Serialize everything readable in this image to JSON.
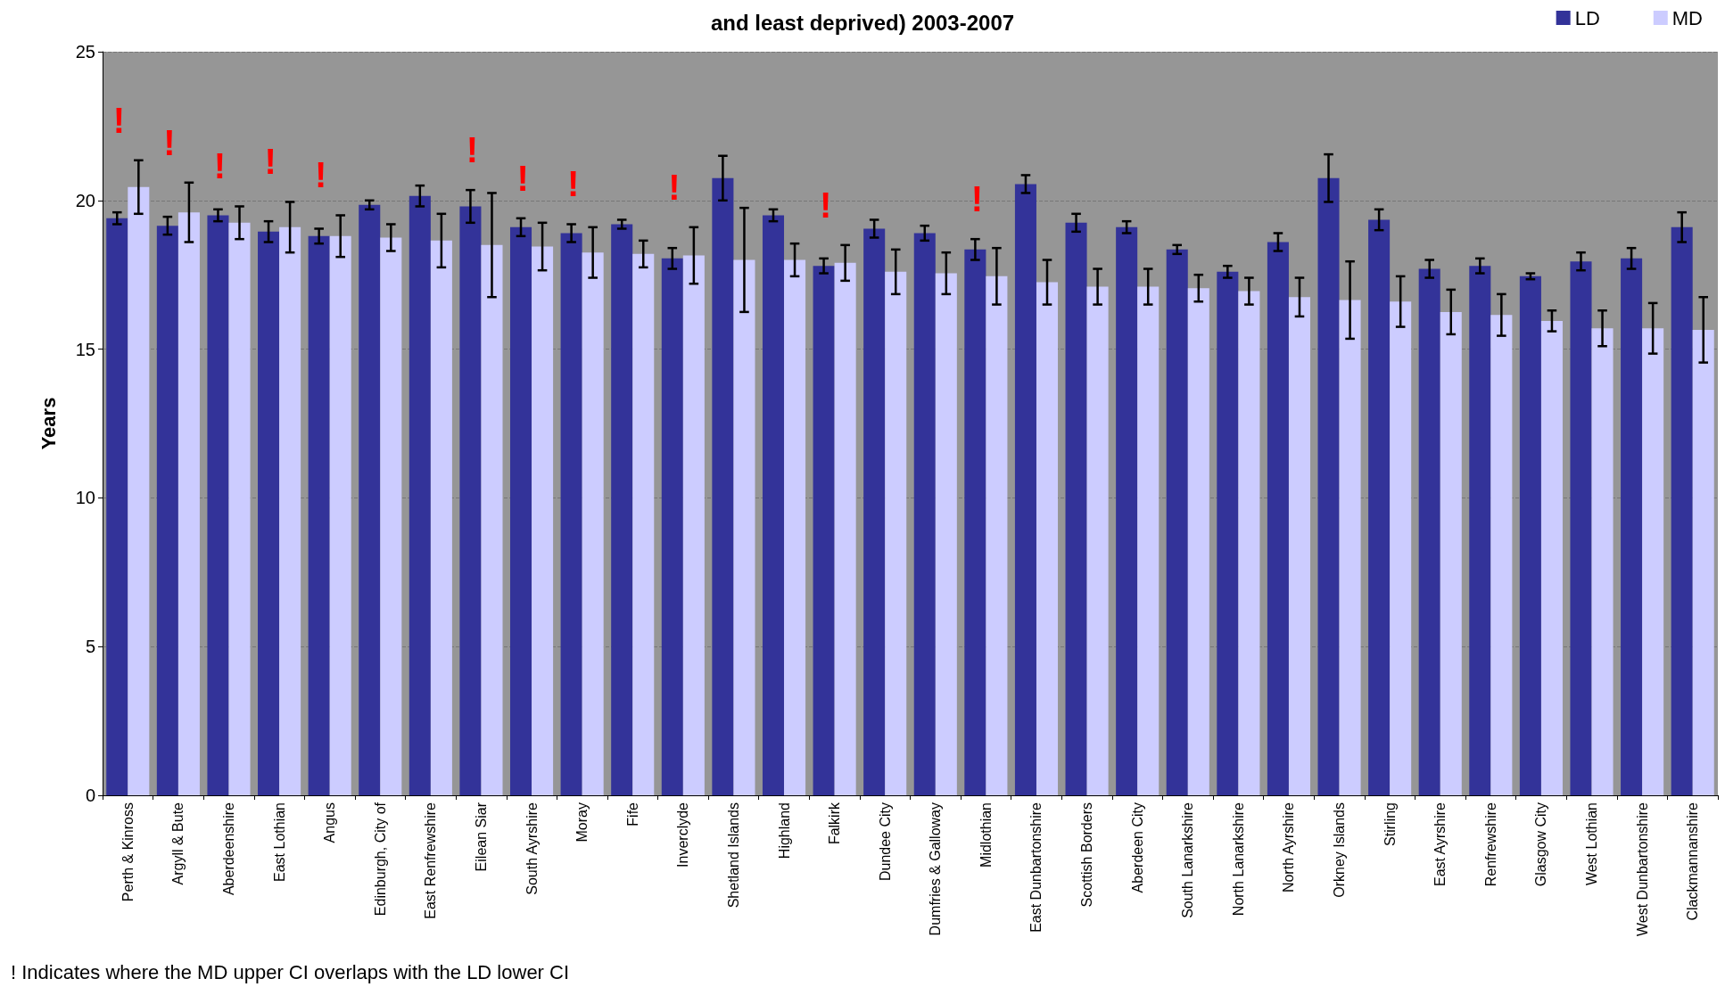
{
  "chart_data": {
    "type": "bar",
    "title": "and least deprived) 2003-2007",
    "ylabel": "Years",
    "categories": [
      "Perth & Kinross",
      "Argyll & Bute",
      "Aberdeenshire",
      "East Lothian",
      "Angus",
      "Edinburgh, City of",
      "East Renfrewshire",
      "Eilean Siar",
      "South Ayrshire",
      "Moray",
      "Fife",
      "Inverclyde",
      "Shetland Islands",
      "Highland",
      "Falkirk",
      "Dundee City",
      "Dumfries & Galloway",
      "Midlothian",
      "East Dunbartonshire",
      "Scottish Borders",
      "Aberdeen City",
      "South Lanarkshire",
      "North Lanarkshire",
      "North Ayrshire",
      "Orkney Islands",
      "Stirling",
      "East Ayrshire",
      "Renfrewshire",
      "Glasgow City",
      "West Lothian",
      "West Dunbartonshire",
      "Clackmannanshire"
    ],
    "series": [
      {
        "name": "LD",
        "color": "#333399",
        "values": [
          19.4,
          19.15,
          19.5,
          18.95,
          18.8,
          19.85,
          20.15,
          19.8,
          19.1,
          18.9,
          19.2,
          18.05,
          20.75,
          19.5,
          17.8,
          19.05,
          18.9,
          18.35,
          20.55,
          19.25,
          19.1,
          18.35,
          17.6,
          18.6,
          20.75,
          19.35,
          17.7,
          17.8,
          17.45,
          17.95,
          18.05,
          19.1
        ],
        "errors": [
          0.2,
          0.3,
          0.2,
          0.35,
          0.25,
          0.15,
          0.35,
          0.55,
          0.3,
          0.3,
          0.15,
          0.35,
          0.75,
          0.2,
          0.25,
          0.3,
          0.25,
          0.35,
          0.3,
          0.3,
          0.2,
          0.15,
          0.2,
          0.3,
          0.8,
          0.35,
          0.3,
          0.25,
          0.1,
          0.3,
          0.35,
          0.5
        ]
      },
      {
        "name": "MD",
        "color": "#ccccff",
        "values": [
          20.45,
          19.6,
          19.25,
          19.1,
          18.8,
          18.75,
          18.65,
          18.5,
          18.45,
          18.25,
          18.2,
          18.15,
          18.0,
          18.0,
          17.9,
          17.6,
          17.55,
          17.45,
          17.25,
          17.1,
          17.1,
          17.05,
          16.95,
          16.75,
          16.65,
          16.6,
          16.25,
          16.15,
          15.95,
          15.7,
          15.7,
          15.65
        ],
        "errors": [
          0.9,
          1.0,
          0.55,
          0.85,
          0.7,
          0.45,
          0.9,
          1.75,
          0.8,
          0.85,
          0.45,
          0.95,
          1.75,
          0.55,
          0.6,
          0.75,
          0.7,
          0.95,
          0.75,
          0.6,
          0.6,
          0.45,
          0.45,
          0.65,
          1.3,
          0.85,
          0.75,
          0.7,
          0.35,
          0.6,
          0.85,
          1.1
        ]
      }
    ],
    "ylim": [
      0,
      25
    ],
    "yticks": [
      0,
      5,
      10,
      15,
      20,
      25
    ],
    "grid": "y",
    "legend": "top right",
    "annotations": [
      {
        "text": "!",
        "x": "Perth & Kinross",
        "y": 20.45
      },
      {
        "text": "!",
        "x": "Argyll & Bute",
        "y": 19.6
      },
      {
        "text": "!",
        "x": "Aberdeenshire",
        "y": 19.25
      },
      {
        "text": "!",
        "x": "East Lothian",
        "y": 19.1
      },
      {
        "text": "!",
        "x": "Angus",
        "y": 18.8
      },
      {
        "text": "!",
        "x": "Eilean Siar",
        "y": 18.5
      },
      {
        "text": "!",
        "x": "South Ayrshire",
        "y": 18.45
      },
      {
        "text": "!",
        "x": "Moray",
        "y": 18.25
      },
      {
        "text": "!",
        "x": "Inverclyde",
        "y": 18.15
      },
      {
        "text": "!",
        "x": "Falkirk",
        "y": 17.9
      },
      {
        "text": "!",
        "x": "Midlothian",
        "y": 17.45
      },
      "! Indicates where the MD upper CI overlaps with the LD lower CI"
    ]
  }
}
